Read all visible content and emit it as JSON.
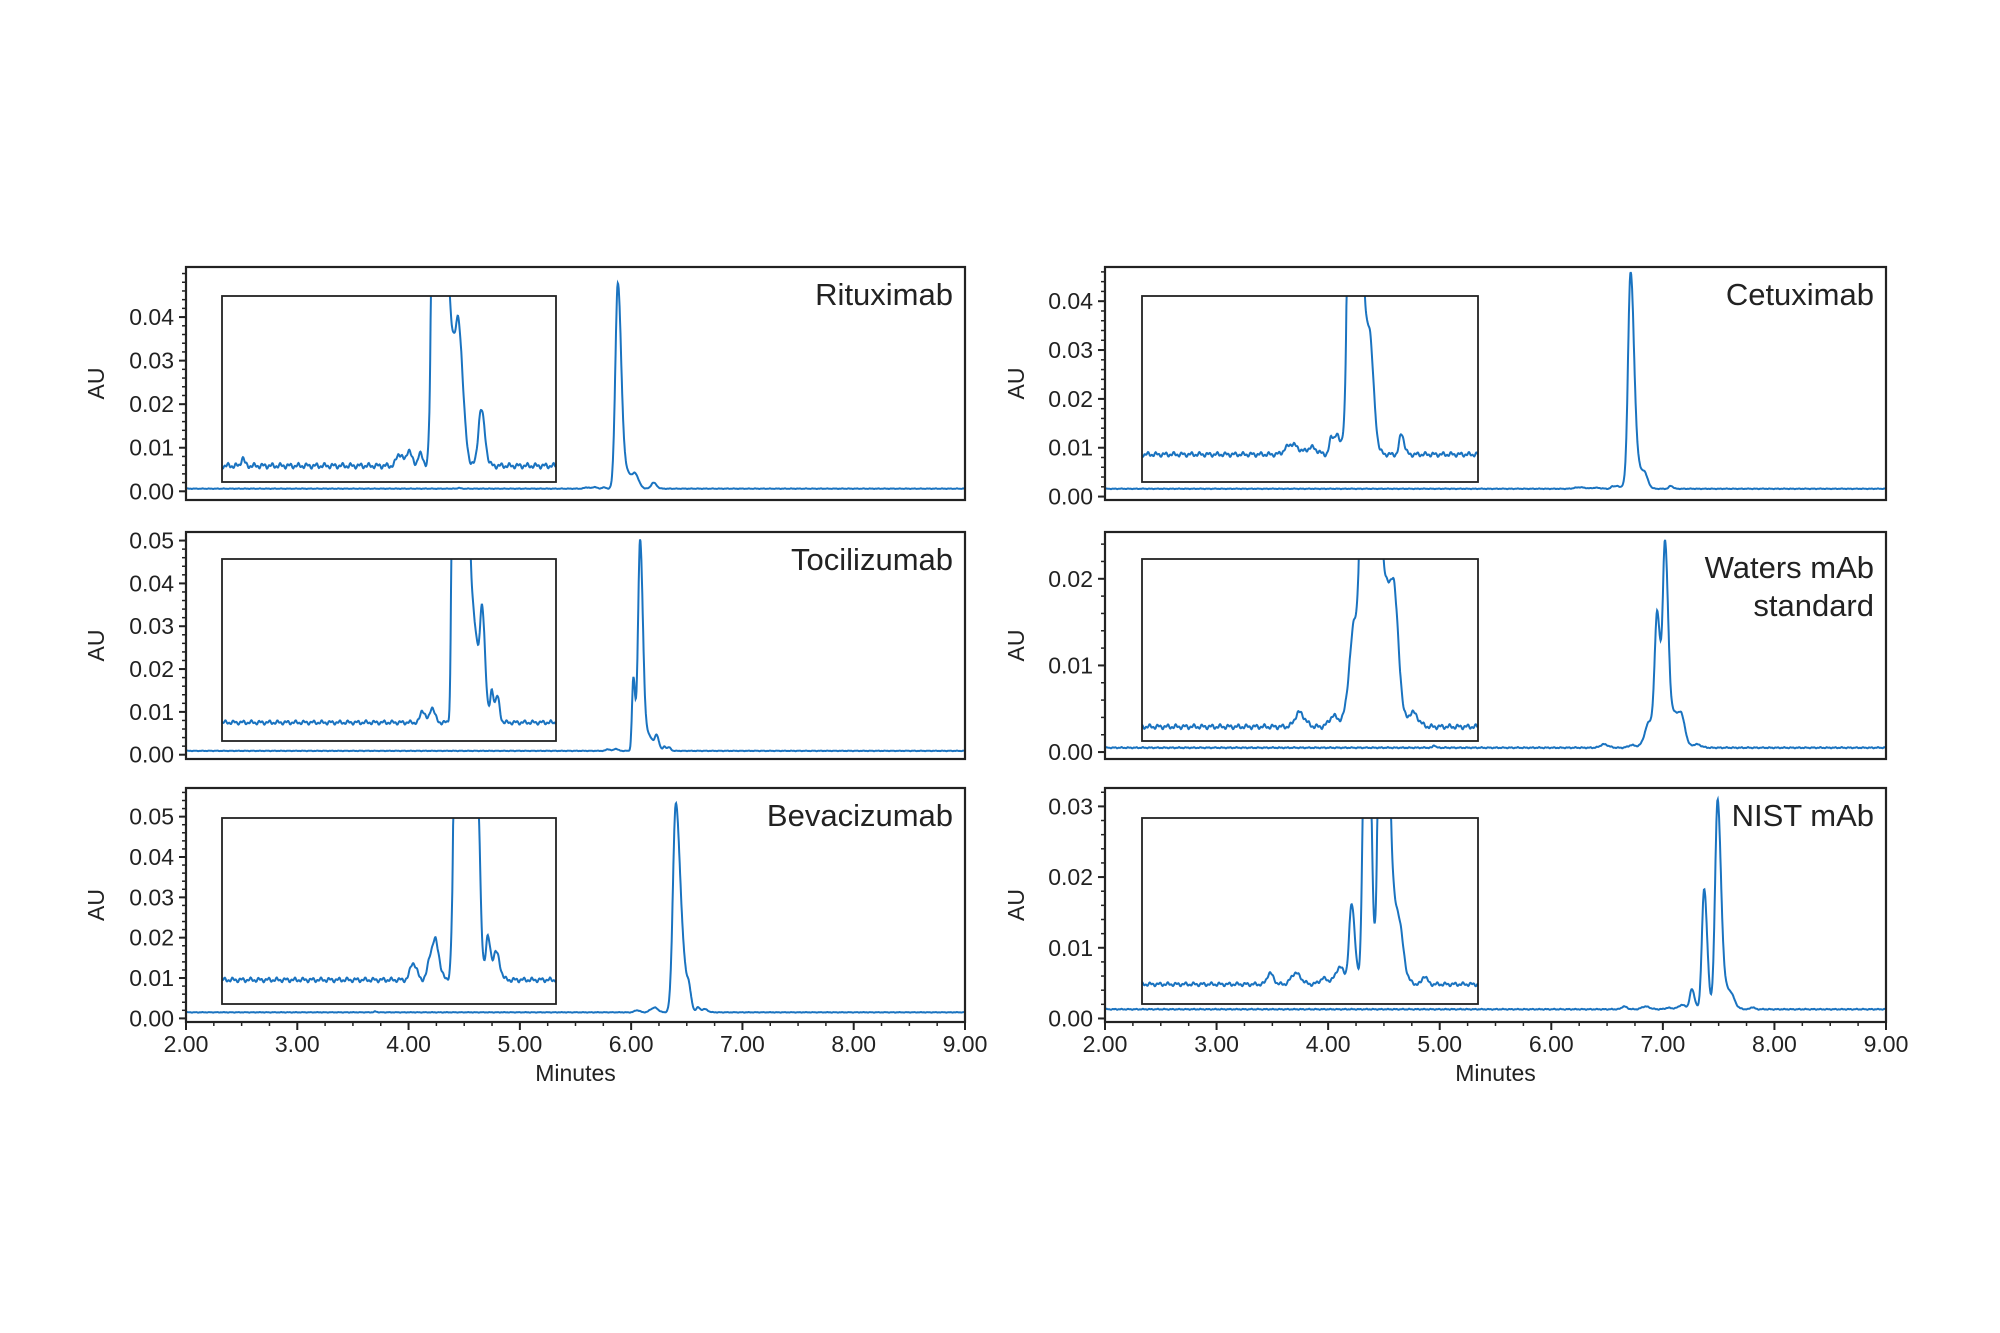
{
  "colors": {
    "trace": "#1a73c0",
    "frame": "#222222"
  },
  "chart_data": [
    {
      "type": "line",
      "title": "Rituximab",
      "xlabel": "",
      "ylabel": "AU",
      "xlim": [
        2.0,
        9.0
      ],
      "ylim": [
        -0.002,
        0.0515
      ],
      "xticks": [],
      "yticks": [
        "0.00",
        "0.01",
        "0.02",
        "0.03",
        "0.04"
      ],
      "baseline": 0.0006,
      "peaks_rt_height_width": [
        [
          4.45,
          0.0002,
          0.01
        ],
        [
          5.6,
          0.0003,
          0.02
        ],
        [
          5.67,
          0.0004,
          0.015
        ],
        [
          5.75,
          0.0003,
          0.015
        ],
        [
          5.88,
          0.046,
          0.022
        ],
        [
          5.95,
          0.004,
          0.045
        ],
        [
          6.04,
          0.0022,
          0.022
        ],
        [
          6.2,
          0.0014,
          0.02
        ]
      ],
      "inset": {
        "xlim": [
          4.3,
          6.75
        ],
        "ylim": [
          0.0002,
          0.0048
        ]
      }
    },
    {
      "type": "line",
      "title": "Tocilizumab",
      "xlabel": "",
      "ylabel": "AU",
      "xlim": [
        2.0,
        9.0
      ],
      "ylim": [
        -0.001,
        0.052
      ],
      "xticks": [],
      "yticks": [
        "0.00",
        "0.01",
        "0.02",
        "0.03",
        "0.04",
        "0.05"
      ],
      "baseline": 0.0009,
      "peaks_rt_height_width": [
        [
          5.79,
          0.0004,
          0.015
        ],
        [
          5.86,
          0.0005,
          0.015
        ],
        [
          6.02,
          0.017,
          0.012
        ],
        [
          6.08,
          0.048,
          0.018
        ],
        [
          6.14,
          0.004,
          0.04
        ],
        [
          6.23,
          0.0028,
          0.015
        ],
        [
          6.3,
          0.001,
          0.012
        ],
        [
          6.34,
          0.0008,
          0.012
        ]
      ],
      "inset": {
        "xlim": [
          4.32,
          6.77
        ],
        "ylim": [
          0.0003,
          0.0062
        ]
      }
    },
    {
      "type": "line",
      "title": "Bevacizumab",
      "xlabel": "Minutes",
      "ylabel": "AU",
      "xlim": [
        2.0,
        9.0
      ],
      "ylim": [
        -0.0009,
        0.0571
      ],
      "xticks": [
        "2.00",
        "3.00",
        "4.00",
        "5.00",
        "6.00",
        "7.00",
        "8.00",
        "9.00"
      ],
      "yticks": [
        "0.00",
        "0.01",
        "0.02",
        "0.03",
        "0.04",
        "0.05"
      ],
      "baseline": 0.0015,
      "peaks_rt_height_width": [
        [
          3.7,
          0.0002,
          0.01
        ],
        [
          6.05,
          0.0005,
          0.02
        ],
        [
          6.18,
          0.0007,
          0.02
        ],
        [
          6.22,
          0.0009,
          0.02
        ],
        [
          6.4,
          0.05,
          0.025
        ],
        [
          6.46,
          0.012,
          0.03
        ],
        [
          6.52,
          0.0035,
          0.015
        ],
        [
          6.6,
          0.0012,
          0.015
        ],
        [
          6.66,
          0.0008,
          0.02
        ]
      ],
      "inset": {
        "xlim": [
          4.65,
          7.1
        ],
        "ylim": [
          0.0008,
          0.0062
        ]
      }
    },
    {
      "type": "line",
      "title": "Cetuximab",
      "xlabel": "",
      "ylabel": "AU",
      "xlim": [
        2.0,
        9.0
      ],
      "ylim": [
        -0.0007,
        0.047
      ],
      "xticks": [],
      "yticks": [
        "0.00",
        "0.01",
        "0.02",
        "0.03",
        "0.04"
      ],
      "baseline": 0.0016,
      "peaks_rt_height_width": [
        [
          6.25,
          0.0003,
          0.04
        ],
        [
          6.4,
          0.0002,
          0.03
        ],
        [
          6.55,
          0.0005,
          0.015
        ],
        [
          6.59,
          0.0005,
          0.015
        ],
        [
          6.65,
          0.0006,
          0.02
        ],
        [
          6.71,
          0.042,
          0.022
        ],
        [
          6.76,
          0.005,
          0.04
        ],
        [
          6.84,
          0.0018,
          0.02
        ],
        [
          7.07,
          0.0006,
          0.015
        ]
      ],
      "inset": {
        "xlim": [
          5.14,
          7.64
        ],
        "ylim": [
          0.0008,
          0.0062
        ]
      }
    },
    {
      "type": "line",
      "title": "Waters mAb standard",
      "title_lines": [
        "Waters mAb",
        "standard"
      ],
      "xlabel": "",
      "ylabel": "AU",
      "xlim": [
        2.0,
        9.0
      ],
      "ylim": [
        -0.0008,
        0.0254
      ],
      "xticks": [],
      "yticks": [
        "0.00",
        "0.01",
        "0.02"
      ],
      "baseline": 0.0005,
      "peaks_rt_height_width": [
        [
          4.95,
          0.0003,
          0.01
        ],
        [
          6.47,
          0.0004,
          0.03
        ],
        [
          6.72,
          0.0003,
          0.03
        ],
        [
          6.88,
          0.003,
          0.04
        ],
        [
          6.95,
          0.0145,
          0.022
        ],
        [
          7.02,
          0.0225,
          0.02
        ],
        [
          7.1,
          0.004,
          0.04
        ],
        [
          7.17,
          0.0022,
          0.025
        ],
        [
          7.3,
          0.0004,
          0.03
        ]
      ],
      "inset": {
        "xlim": [
          5.32,
          7.78
        ],
        "ylim": [
          0.0001,
          0.0052
        ]
      }
    },
    {
      "type": "line",
      "title": "NIST mAb",
      "xlabel": "Minutes",
      "ylabel": "AU",
      "xlim": [
        2.0,
        9.0
      ],
      "ylim": [
        -0.0005,
        0.0326
      ],
      "xticks": [
        "2.00",
        "3.00",
        "4.00",
        "5.00",
        "6.00",
        "7.00",
        "8.00",
        "9.00"
      ],
      "yticks": [
        "0.00",
        "0.01",
        "0.02",
        "0.03"
      ],
      "baseline": 0.0013,
      "peaks_rt_height_width": [
        [
          6.65,
          0.0004,
          0.02
        ],
        [
          6.84,
          0.0004,
          0.03
        ],
        [
          7.05,
          0.0002,
          0.03
        ],
        [
          7.17,
          0.0006,
          0.03
        ],
        [
          7.26,
          0.0028,
          0.018
        ],
        [
          7.37,
          0.017,
          0.02
        ],
        [
          7.49,
          0.029,
          0.022
        ],
        [
          7.56,
          0.003,
          0.04
        ],
        [
          7.62,
          0.0006,
          0.02
        ],
        [
          7.8,
          0.0003,
          0.015
        ]
      ],
      "inset": {
        "xlim": [
          5.7,
          8.2
        ],
        "ylim": [
          0.0006,
          0.0072
        ]
      }
    }
  ]
}
